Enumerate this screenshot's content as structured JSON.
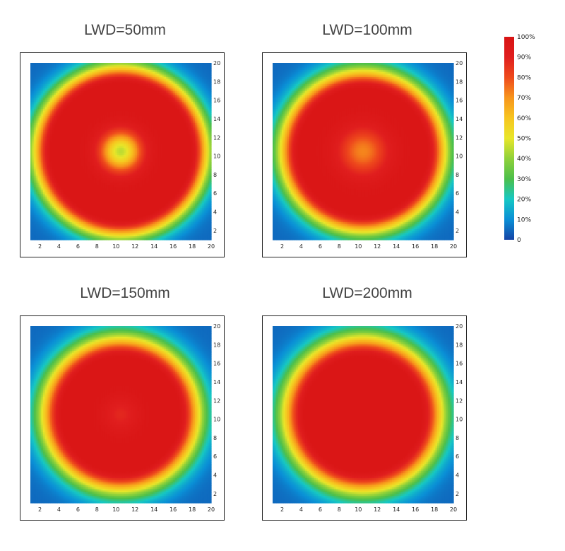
{
  "chart_data": [
    {
      "type": "heatmap",
      "title": "LWD=50mm",
      "x_ticks": [
        "2",
        "4",
        "6",
        "8",
        "10",
        "12",
        "14",
        "16",
        "18",
        "20"
      ],
      "y_ticks": [
        "20",
        "18",
        "16",
        "14",
        "12",
        "10",
        "8",
        "6",
        "4",
        "2"
      ],
      "xlim": [
        1,
        20
      ],
      "ylim": [
        1,
        20
      ],
      "profile": {
        "center_value": 45,
        "dip_radius": 1.8,
        "plateau": 98,
        "plateau_radius": 7.2,
        "falloff_width": 2.4,
        "corner_value": 5
      }
    },
    {
      "type": "heatmap",
      "title": "LWD=100mm",
      "x_ticks": [
        "2",
        "4",
        "6",
        "8",
        "10",
        "12",
        "14",
        "16",
        "18",
        "20"
      ],
      "y_ticks": [
        "20",
        "18",
        "16",
        "14",
        "12",
        "10",
        "8",
        "6",
        "4",
        "2"
      ],
      "xlim": [
        1,
        20
      ],
      "ylim": [
        1,
        20
      ],
      "profile": {
        "center_value": 72,
        "dip_radius": 2.2,
        "plateau": 98,
        "plateau_radius": 6.6,
        "falloff_width": 2.6,
        "corner_value": 5
      }
    },
    {
      "type": "heatmap",
      "title": "LWD=150mm",
      "x_ticks": [
        "2",
        "4",
        "6",
        "8",
        "10",
        "12",
        "14",
        "16",
        "18",
        "20"
      ],
      "y_ticks": [
        "20",
        "18",
        "16",
        "14",
        "12",
        "10",
        "8",
        "6",
        "4",
        "2"
      ],
      "xlim": [
        1,
        20
      ],
      "ylim": [
        1,
        20
      ],
      "profile": {
        "center_value": 88,
        "dip_radius": 1.6,
        "plateau": 98,
        "plateau_radius": 6.0,
        "falloff_width": 2.8,
        "corner_value": 5
      }
    },
    {
      "type": "heatmap",
      "title": "LWD=200mm",
      "x_ticks": [
        "2",
        "4",
        "6",
        "8",
        "10",
        "12",
        "14",
        "16",
        "18",
        "20"
      ],
      "y_ticks": [
        "20",
        "18",
        "16",
        "14",
        "12",
        "10",
        "8",
        "6",
        "4",
        "2"
      ],
      "xlim": [
        1,
        20
      ],
      "ylim": [
        1,
        20
      ],
      "profile": {
        "center_value": 98,
        "dip_radius": 0.1,
        "plateau": 98,
        "plateau_radius": 6.0,
        "falloff_width": 2.9,
        "corner_value": 5
      }
    }
  ],
  "colorbar": {
    "labels": [
      "100%",
      "90%",
      "80%",
      "70%",
      "60%",
      "50%",
      "40%",
      "30%",
      "20%",
      "10%",
      "0"
    ],
    "colors": [
      "#1544a6",
      "#0a8fd6",
      "#16c8c4",
      "#4cbf4a",
      "#8fd13a",
      "#e8e62a",
      "#f7c51f",
      "#f7951c",
      "#ee4a1c",
      "#e01e1e",
      "#d81414"
    ]
  }
}
